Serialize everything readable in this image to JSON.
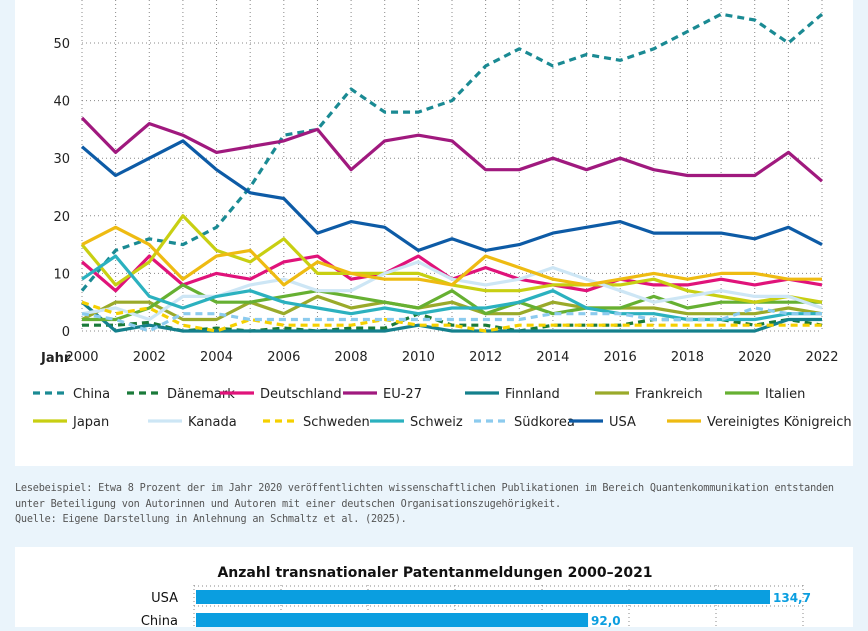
{
  "chart_data": [
    {
      "type": "line",
      "title": "",
      "xlabel": "Jahr",
      "ylabel": "",
      "x": [
        2000,
        2001,
        2002,
        2003,
        2004,
        2005,
        2006,
        2007,
        2008,
        2009,
        2010,
        2011,
        2012,
        2013,
        2014,
        2015,
        2016,
        2017,
        2018,
        2019,
        2020,
        2021,
        2022
      ],
      "x_ticks": [
        "2000",
        "2002",
        "2004",
        "2006",
        "2008",
        "2010",
        "2012",
        "2014",
        "2016",
        "2018",
        "2020",
        "2022"
      ],
      "y_ticks": [
        "0",
        "10",
        "20",
        "30",
        "40",
        "50"
      ],
      "ylim": [
        0,
        55
      ],
      "grid": true,
      "legend_position": "bottom",
      "series": [
        {
          "name": "China",
          "color": "#1a8a93",
          "dashed": true,
          "values": [
            7,
            14,
            16,
            15,
            18,
            25,
            34,
            35,
            42,
            38,
            38,
            40,
            46,
            49,
            46,
            48,
            47,
            49,
            52,
            55,
            54,
            50,
            55
          ]
        },
        {
          "name": "Dänemark",
          "color": "#1a7a3a",
          "dashed": true,
          "values": [
            1,
            1,
            1.5,
            0,
            0.5,
            0,
            0.5,
            0,
            0.5,
            0.5,
            3,
            1,
            1,
            0,
            1,
            1,
            1,
            2,
            2,
            2,
            1,
            2,
            1
          ]
        },
        {
          "name": "Deutschland",
          "color": "#e0137a",
          "dashed": false,
          "values": [
            12,
            7,
            13,
            8,
            10,
            9,
            12,
            13,
            9,
            10,
            13,
            9,
            11,
            9,
            8,
            7,
            9,
            8,
            8,
            9,
            8,
            9,
            8
          ]
        },
        {
          "name": "EU-27",
          "color": "#a0197e",
          "dashed": false,
          "values": [
            37,
            31,
            36,
            34,
            31,
            32,
            33,
            35,
            28,
            33,
            34,
            33,
            28,
            28,
            30,
            28,
            30,
            28,
            27,
            27,
            27,
            31,
            26
          ]
        },
        {
          "name": "Finnland",
          "color": "#14808c",
          "dashed": false,
          "values": [
            5,
            0,
            1,
            0,
            0,
            0,
            0,
            0,
            0,
            0,
            1,
            0,
            0,
            0,
            0,
            0,
            0,
            0,
            0,
            0,
            0,
            2,
            2
          ]
        },
        {
          "name": "Frankreich",
          "color": "#9aaa2a",
          "dashed": false,
          "values": [
            2,
            5,
            5,
            2,
            2,
            5,
            3,
            6,
            4,
            5,
            4,
            5,
            3,
            3,
            5,
            4,
            4,
            4,
            3,
            3,
            3,
            4,
            3
          ]
        },
        {
          "name": "Italien",
          "color": "#66b032",
          "dashed": false,
          "values": [
            2,
            2,
            4,
            8,
            5,
            5,
            6,
            7,
            6,
            5,
            4,
            7,
            3,
            5,
            3,
            4,
            4,
            6,
            4,
            5,
            5,
            5,
            5
          ]
        },
        {
          "name": "Japan",
          "color": "#c8cf12",
          "dashed": false,
          "values": [
            15,
            8,
            12,
            20,
            14,
            12,
            16,
            10,
            10,
            10,
            10,
            8,
            7,
            7,
            8,
            8,
            8,
            9,
            7,
            6,
            5,
            6,
            5
          ]
        },
        {
          "name": "Kanada",
          "color": "#cde6f5",
          "dashed": false,
          "values": [
            3,
            4,
            2,
            6,
            6,
            8,
            9,
            7,
            7,
            10,
            12,
            9,
            8,
            9,
            11,
            9,
            7,
            5,
            6,
            7,
            6,
            6,
            4
          ]
        },
        {
          "name": "Schweden",
          "color": "#f5d000",
          "dashed": true,
          "values": [
            5,
            3,
            4,
            1,
            0,
            2,
            1,
            1,
            1,
            2,
            1,
            1,
            0,
            1,
            1,
            1,
            1,
            1,
            1,
            1,
            1,
            1,
            1
          ]
        },
        {
          "name": "Schweiz",
          "color": "#2bb1bf",
          "dashed": false,
          "values": [
            9,
            13,
            6,
            4,
            6,
            7,
            5,
            4,
            3,
            4,
            3,
            4,
            4,
            5,
            7,
            4,
            3,
            3,
            2,
            2,
            2,
            3,
            3
          ]
        },
        {
          "name": "Südkorea",
          "color": "#8ccbee",
          "dashed": true,
          "values": [
            3,
            2,
            0,
            3,
            3,
            2,
            2,
            2,
            2,
            2,
            2,
            2,
            2,
            2,
            3,
            3,
            3,
            2,
            2,
            2,
            4,
            3,
            3
          ]
        },
        {
          "name": "USA",
          "color": "#0d5ba6",
          "dashed": false,
          "values": [
            32,
            27,
            30,
            33,
            28,
            24,
            23,
            17,
            19,
            18,
            14,
            16,
            14,
            15,
            17,
            18,
            19,
            17,
            17,
            17,
            16,
            18,
            15
          ]
        },
        {
          "name": "Vereinigtes Königreich",
          "color": "#eebb12",
          "dashed": false,
          "values": [
            15,
            18,
            15,
            9,
            13,
            14,
            8,
            12,
            10,
            9,
            9,
            8,
            13,
            11,
            9,
            8,
            9,
            10,
            9,
            10,
            10,
            9,
            9
          ]
        }
      ]
    },
    {
      "type": "bar",
      "orientation": "horizontal",
      "title": "Anzahl transnationaler Patentanmeldungen 2000–2021",
      "categories": [
        "USA",
        "China"
      ],
      "values": [
        134.7,
        92.0
      ],
      "value_labels": [
        "134,7",
        "92,0"
      ],
      "color": "#0a9ee0",
      "grid": true
    }
  ],
  "legend": {
    "row1": [
      "China",
      "Dänemark",
      "Deutschland",
      "EU-27",
      "Finnland",
      "Frankreich",
      "Italien"
    ],
    "row2": [
      "Japan",
      "Kanada",
      "Schweden",
      "Schweiz",
      "Südkorea",
      "USA",
      "Vereinigtes Königreich"
    ]
  },
  "caption": {
    "line1": "Lesebeispiel: Etwa 8 Prozent der im Jahr 2020 veröffentlichten wissenschaftlichen Publikationen im Bereich Quantenkommunikation entstanden",
    "line2": "unter Beteiligung von Autorinnen und Autoren mit einer deutschen Organisationszugehörigkeit.",
    "line3": "Quelle: Eigene Darstellung in Anlehnung an Schmaltz et al. (2025)."
  }
}
